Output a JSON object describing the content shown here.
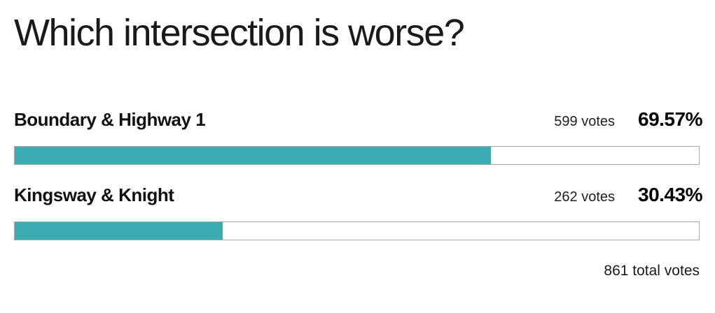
{
  "poll": {
    "title": "Which intersection is worse?",
    "options": [
      {
        "label": "Boundary & Highway 1",
        "votes_label": "599 votes",
        "percent_label": "69.57%",
        "percent": 69.57
      },
      {
        "label": "Kingsway & Knight",
        "votes_label": "262 votes",
        "percent_label": "30.43%",
        "percent": 30.43
      }
    ],
    "total_label": "861 total votes"
  },
  "colors": {
    "bar_fill": "#3AACB2",
    "bar_track_border": "#A8A8A8",
    "text": "#1A1A1A"
  },
  "chart_data": {
    "type": "bar",
    "orientation": "horizontal",
    "title": "Which intersection is worse?",
    "categories": [
      "Boundary & Highway 1",
      "Kingsway & Knight"
    ],
    "series": [
      {
        "name": "votes",
        "values": [
          599,
          262
        ]
      },
      {
        "name": "percent",
        "values": [
          69.57,
          30.43
        ]
      }
    ],
    "total_votes": 861,
    "xlabel": "",
    "ylabel": "",
    "xlim": [
      0,
      100
    ],
    "grid": false,
    "legend": "none",
    "bar_color": "#3AACB2"
  }
}
